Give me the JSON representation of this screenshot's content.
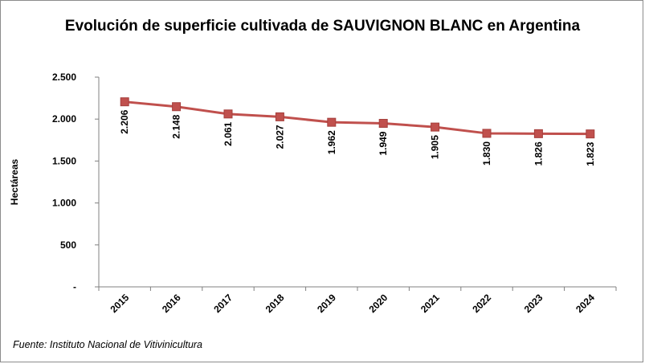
{
  "chart_data": {
    "type": "line",
    "title": "Evolución de superficie cultivada de SAUVIGNON BLANC en Argentina",
    "xlabel": "",
    "ylabel": "Hectáreas",
    "categories": [
      "2015",
      "2016",
      "2017",
      "2018",
      "2019",
      "2020",
      "2021",
      "2022",
      "2023",
      "2024"
    ],
    "series": [
      {
        "values": [
          2206,
          2148,
          2061,
          2027,
          1962,
          1949,
          1905,
          1830,
          1826,
          1823
        ],
        "labels": [
          "2.206",
          "2.148",
          "2.061",
          "2.027",
          "1.962",
          "1.949",
          "1.905",
          "1.830",
          "1.826",
          "1.823"
        ],
        "color": "#c0504d"
      }
    ],
    "ylim": [
      0,
      2500
    ],
    "yticks": [
      {
        "value": 0,
        "label": "-"
      },
      {
        "value": 500,
        "label": "500"
      },
      {
        "value": 1000,
        "label": "1.000"
      },
      {
        "value": 1500,
        "label": "1.500"
      },
      {
        "value": 2000,
        "label": "2.000"
      },
      {
        "value": 2500,
        "label": "2.500"
      }
    ],
    "grid": false,
    "legend": "none"
  },
  "source": "Fuente: Instituto Nacional de Vitivinicultura",
  "colors": {
    "series": "#c0504d",
    "marker_edge": "#a53f3c",
    "axis": "#808080"
  }
}
